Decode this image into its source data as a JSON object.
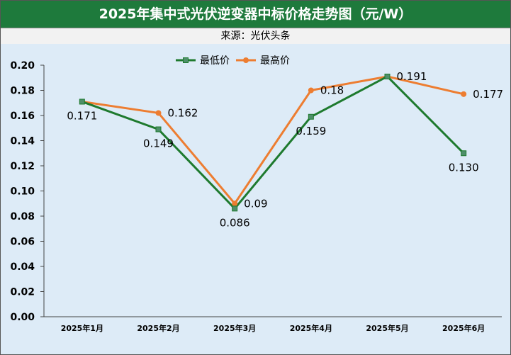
{
  "header": {
    "title": "2025年集中式光伏逆变器中标价格走势图（元/W）",
    "source": "来源：光伏头条"
  },
  "colors": {
    "title_bg": "#1e7a3c",
    "plot_bg": "#ddebf7",
    "low_series": "#1e7a2e",
    "low_marker": "#4e8f6a",
    "high_series": "#ed7d31"
  },
  "chart_data": {
    "type": "line",
    "title": "2025年集中式光伏逆变器中标价格走势图（元/W）",
    "xlabel": "",
    "ylabel": "",
    "ylim": [
      0,
      0.2
    ],
    "yticks": [
      "0.00",
      "0.02",
      "0.04",
      "0.06",
      "0.08",
      "0.10",
      "0.12",
      "0.14",
      "0.16",
      "0.18",
      "0.20"
    ],
    "categories": [
      "2025年1月",
      "2025年2月",
      "2025年3月",
      "2025年4月",
      "2025年5月",
      "2025年6月"
    ],
    "legend_position": "top-center",
    "series": [
      {
        "name": "最低价",
        "values": [
          0.171,
          0.149,
          0.086,
          0.159,
          0.191,
          0.13
        ],
        "labels": [
          "0.171",
          "0.149",
          "0.086",
          "0.159",
          "0.191",
          "0.130"
        ],
        "label_anchor": [
          "below",
          "below",
          "below",
          "below",
          "right",
          "below"
        ]
      },
      {
        "name": "最高价",
        "values": [
          0.171,
          0.162,
          0.09,
          0.18,
          0.191,
          0.177
        ],
        "labels": [
          "",
          "0.162",
          "0.09",
          "0.18",
          "",
          "0.177"
        ],
        "label_anchor": [
          "right",
          "right",
          "right",
          "right",
          "right",
          "right"
        ]
      }
    ]
  }
}
